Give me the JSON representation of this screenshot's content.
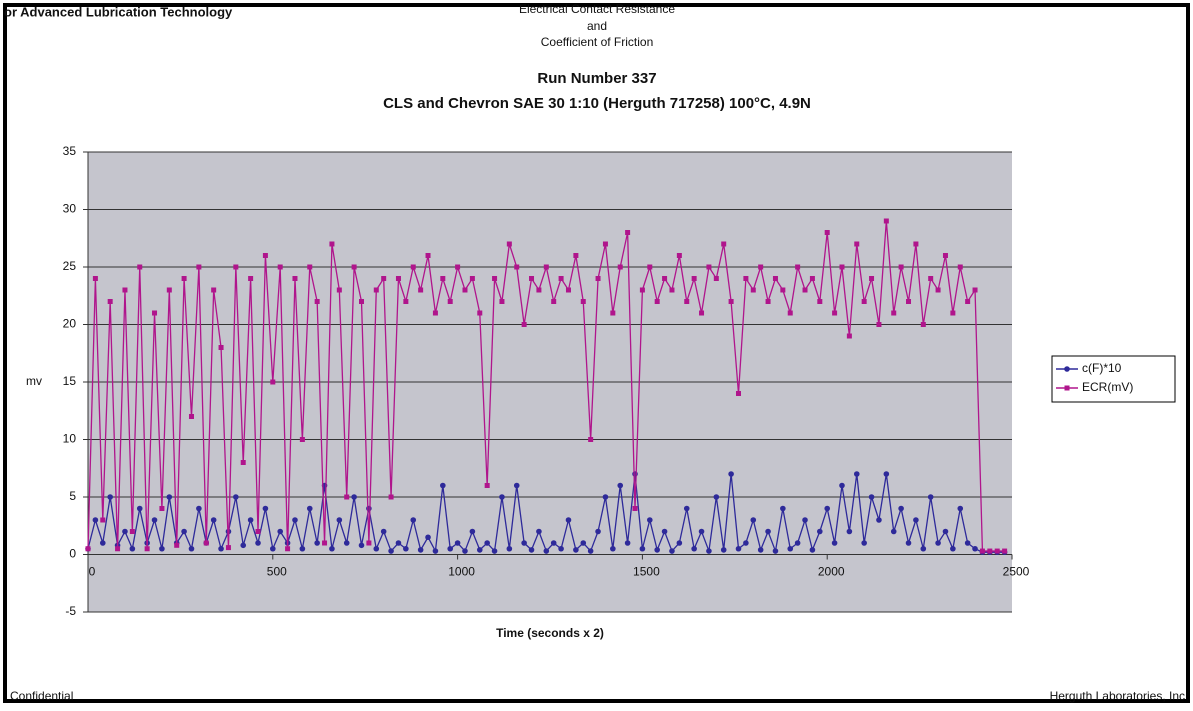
{
  "page": {
    "header_left": "or Advanced Lubrication Technology",
    "header_lines": [
      "Electrical Contact Resistance",
      "and",
      "Coefficient of Friction"
    ],
    "footer_left": "Confidential",
    "footer_right": "Herguth Laboratories, Inc"
  },
  "chart_data": {
    "type": "line",
    "title": "Run Number 337",
    "subtitle": "CLS and Chevron SAE 30 1:10 (Herguth 717258) 100°C, 4.9N",
    "x_label": "Time (seconds x 2)",
    "y_label": "mv",
    "xlim": [
      0,
      2500
    ],
    "xticks": [
      0,
      500,
      1000,
      1500,
      2000,
      2500
    ],
    "ylim": [
      -5,
      35
    ],
    "yticks": [
      -5,
      0,
      5,
      10,
      15,
      20,
      25,
      30,
      35
    ],
    "grid": true,
    "legend": "right",
    "x": [
      0,
      20,
      40,
      60,
      80,
      100,
      120,
      140,
      160,
      180,
      200,
      220,
      240,
      260,
      280,
      300,
      320,
      340,
      360,
      380,
      400,
      420,
      440,
      460,
      480,
      500,
      520,
      540,
      560,
      580,
      600,
      620,
      640,
      660,
      680,
      700,
      720,
      740,
      760,
      780,
      800,
      820,
      840,
      860,
      880,
      900,
      920,
      940,
      960,
      980,
      1000,
      1020,
      1040,
      1060,
      1080,
      1100,
      1120,
      1140,
      1160,
      1180,
      1200,
      1220,
      1240,
      1260,
      1280,
      1300,
      1320,
      1340,
      1360,
      1380,
      1400,
      1420,
      1440,
      1460,
      1480,
      1500,
      1520,
      1540,
      1560,
      1580,
      1600,
      1620,
      1640,
      1660,
      1680,
      1700,
      1720,
      1740,
      1760,
      1780,
      1800,
      1820,
      1840,
      1860,
      1880,
      1900,
      1920,
      1940,
      1960,
      1980,
      2000,
      2020,
      2040,
      2060,
      2080,
      2100,
      2120,
      2140,
      2160,
      2180,
      2200,
      2220,
      2240,
      2260,
      2280,
      2300,
      2320,
      2340,
      2360,
      2380,
      2400,
      2420,
      2440,
      2460,
      2480
    ],
    "series": [
      {
        "name": "c(F)*10",
        "color": "#2e2a9a",
        "marker": "circle",
        "values": [
          0.5,
          3,
          1,
          5,
          0.8,
          2,
          0.5,
          4,
          1,
          3,
          0.5,
          5,
          1,
          2,
          0.5,
          4,
          1,
          3,
          0.5,
          2,
          5,
          0.8,
          3,
          1,
          4,
          0.5,
          2,
          1,
          3,
          0.5,
          4,
          1,
          6,
          0.5,
          3,
          1,
          5,
          0.8,
          4,
          0.5,
          2,
          0.3,
          1,
          0.5,
          3,
          0.4,
          1.5,
          0.3,
          6,
          0.5,
          1,
          0.3,
          2,
          0.4,
          1,
          0.3,
          5,
          0.5,
          6,
          1,
          0.4,
          2,
          0.3,
          1,
          0.5,
          3,
          0.4,
          1,
          0.3,
          2,
          5,
          0.5,
          6,
          1,
          7,
          0.5,
          3,
          0.4,
          2,
          0.3,
          1,
          4,
          0.5,
          2,
          0.3,
          5,
          0.4,
          7,
          0.5,
          1,
          3,
          0.4,
          2,
          0.3,
          4,
          0.5,
          1,
          3,
          0.4,
          2,
          4,
          1,
          6,
          2,
          7,
          1,
          5,
          3,
          7,
          2,
          4,
          1,
          3,
          0.5,
          5,
          1,
          2,
          0.5,
          4,
          1,
          0.5,
          0.2,
          0.2,
          0.2,
          0.2
        ]
      },
      {
        "name": "ECR(mV)",
        "color": "#b0158c",
        "marker": "square",
        "values": [
          0.5,
          24,
          3,
          22,
          0.5,
          23,
          2,
          25,
          0.5,
          21,
          4,
          23,
          0.8,
          24,
          12,
          25,
          1,
          23,
          18,
          0.6,
          25,
          8,
          24,
          2,
          26,
          15,
          25,
          0.5,
          24,
          10,
          25,
          22,
          1,
          27,
          23,
          5,
          25,
          22,
          1,
          23,
          24,
          5,
          24,
          22,
          25,
          23,
          26,
          21,
          24,
          22,
          25,
          23,
          24,
          21,
          6,
          24,
          22,
          27,
          25,
          20,
          24,
          23,
          25,
          22,
          24,
          23,
          26,
          22,
          10,
          24,
          27,
          21,
          25,
          28,
          4,
          23,
          25,
          22,
          24,
          23,
          26,
          22,
          24,
          21,
          25,
          24,
          27,
          22,
          14,
          24,
          23,
          25,
          22,
          24,
          23,
          21,
          25,
          23,
          24,
          22,
          28,
          21,
          25,
          19,
          27,
          22,
          24,
          20,
          29,
          21,
          25,
          22,
          27,
          20,
          24,
          23,
          26,
          21,
          25,
          22,
          23,
          0.3,
          0.3,
          0.3,
          0.3
        ]
      }
    ]
  }
}
